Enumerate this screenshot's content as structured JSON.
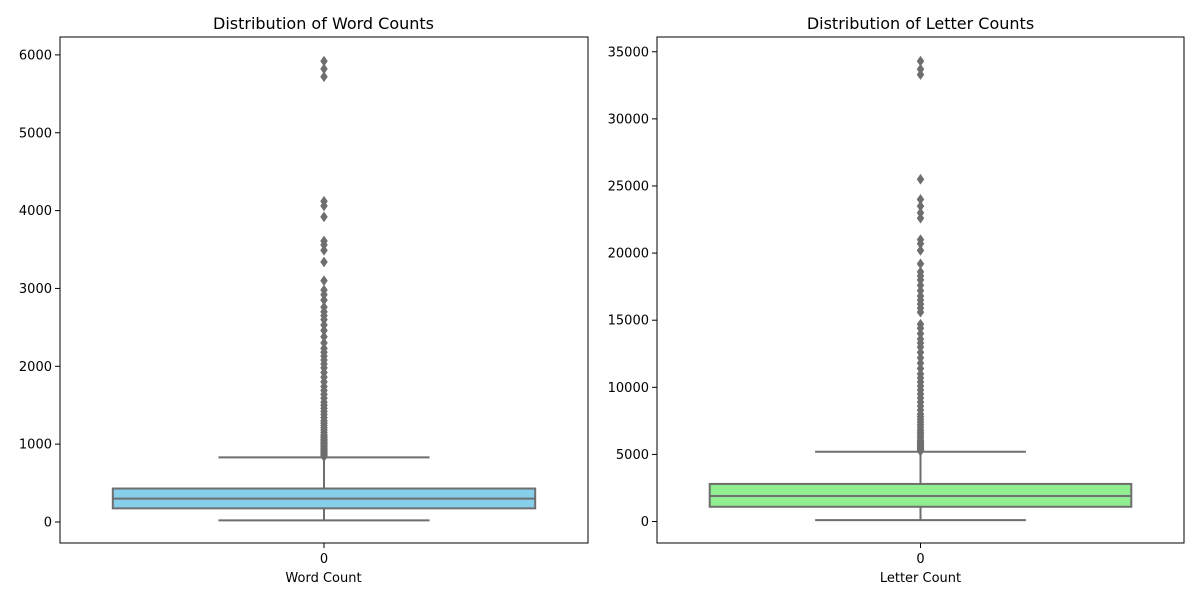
{
  "chart_data": [
    {
      "type": "box",
      "title": "Distribution of Word Counts",
      "xlabel": "Word Count",
      "ylabel": "",
      "categories": [
        "0"
      ],
      "ylim": [
        -270,
        6230
      ],
      "yticks": [
        0,
        1000,
        2000,
        3000,
        4000,
        5000,
        6000
      ],
      "color": "#87ceeb",
      "box": {
        "whisker_low": 20,
        "q1": 175,
        "median": 300,
        "q3": 430,
        "whisker_high": 830
      },
      "outliers": [
        840,
        855,
        870,
        880,
        895,
        905,
        920,
        935,
        950,
        965,
        980,
        995,
        1010,
        1025,
        1045,
        1060,
        1080,
        1100,
        1120,
        1150,
        1180,
        1210,
        1240,
        1270,
        1300,
        1340,
        1380,
        1420,
        1460,
        1500,
        1540,
        1590,
        1640,
        1690,
        1740,
        1800,
        1860,
        1920,
        1980,
        2030,
        2080,
        2130,
        2180,
        2230,
        2300,
        2380,
        2460,
        2530,
        2600,
        2650,
        2700,
        2760,
        2850,
        2920,
        2980,
        3100,
        3340,
        3490,
        3560,
        3610,
        3920,
        4060,
        4120,
        5720,
        5820,
        5920
      ]
    },
    {
      "type": "box",
      "title": "Distribution of Letter Counts",
      "xlabel": "Letter Count",
      "ylabel": "",
      "categories": [
        "0"
      ],
      "ylim": [
        -1600,
        36100
      ],
      "yticks": [
        0,
        5000,
        10000,
        15000,
        20000,
        25000,
        30000,
        35000
      ],
      "color": "#90ee90",
      "box": {
        "whisker_low": 100,
        "q1": 1100,
        "median": 1900,
        "q3": 2800,
        "whisker_high": 5200
      },
      "outliers": [
        5250,
        5350,
        5450,
        5550,
        5650,
        5750,
        5850,
        5950,
        6050,
        6200,
        6350,
        6500,
        6650,
        6800,
        7000,
        7200,
        7400,
        7600,
        7800,
        8000,
        8300,
        8600,
        8900,
        9200,
        9500,
        9800,
        10100,
        10400,
        10700,
        11000,
        11400,
        11800,
        12200,
        12600,
        13000,
        13300,
        13600,
        14000,
        14400,
        14700,
        15600,
        15900,
        16200,
        16500,
        16800,
        17200,
        17600,
        18000,
        18300,
        18600,
        19200,
        20200,
        20700,
        21000,
        22600,
        23000,
        23500,
        24000,
        25500,
        33300,
        33700,
        34300
      ]
    }
  ]
}
